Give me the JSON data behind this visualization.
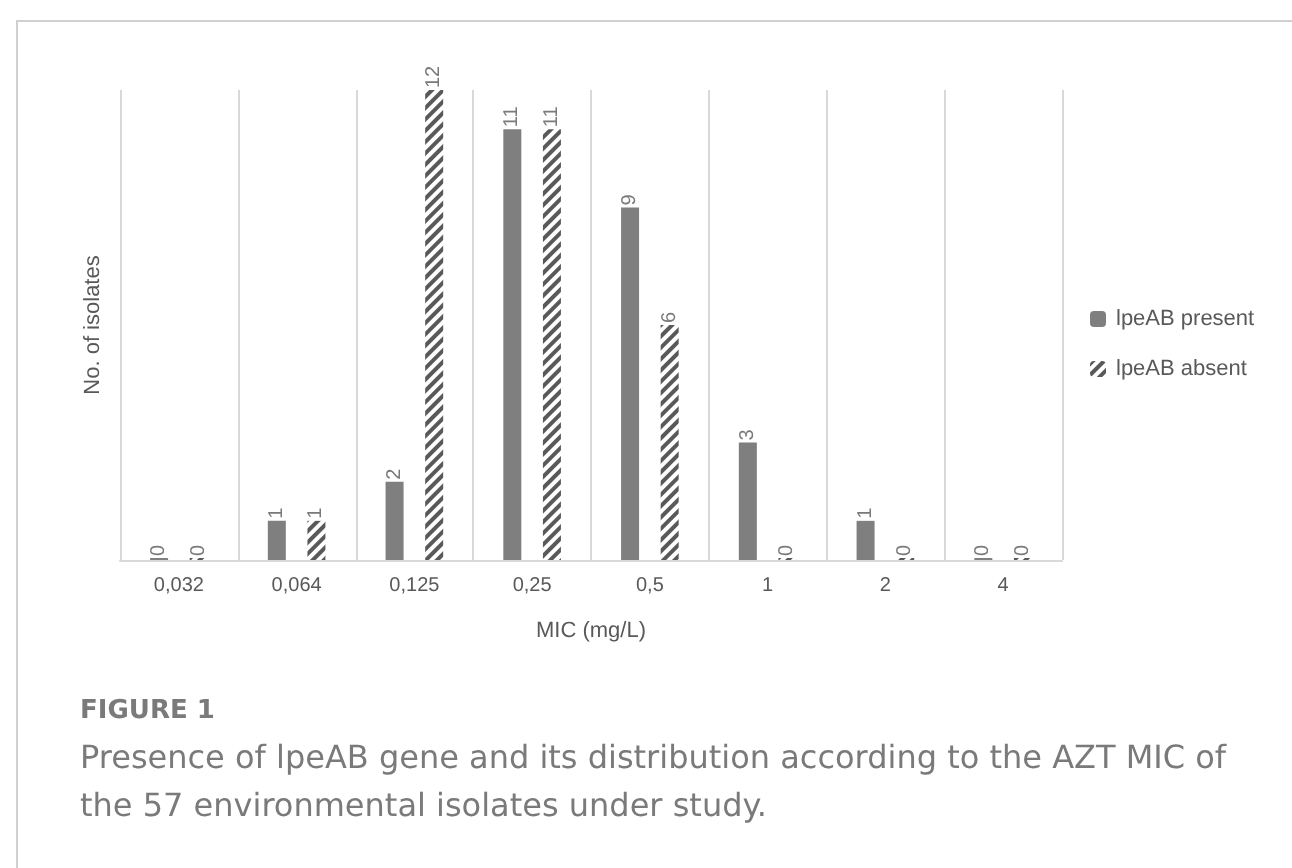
{
  "chart_data": {
    "type": "bar",
    "xlabel": "MIC (mg/L)",
    "ylabel": "No. of isolates",
    "categories": [
      "0,032",
      "0,064",
      "0,125",
      "0,25",
      "0,5",
      "1",
      "2",
      "4"
    ],
    "series": [
      {
        "name": "lpeAB present",
        "color": "#7f7f7f",
        "values": [
          0,
          1,
          2,
          11,
          9,
          3,
          1,
          0
        ]
      },
      {
        "name": "lpeAB absent",
        "color": "#595959",
        "values": [
          0,
          1,
          12,
          11,
          6,
          0,
          0,
          0
        ]
      }
    ],
    "relative": false,
    "data_labels": true,
    "grid": "x",
    "legend": "right",
    "annotations": [
      "FIGURE 1",
      "Presence of lpeAB gene and its distribution according to the AZT MIC of the 57 environmental isolates under study."
    ]
  }
}
